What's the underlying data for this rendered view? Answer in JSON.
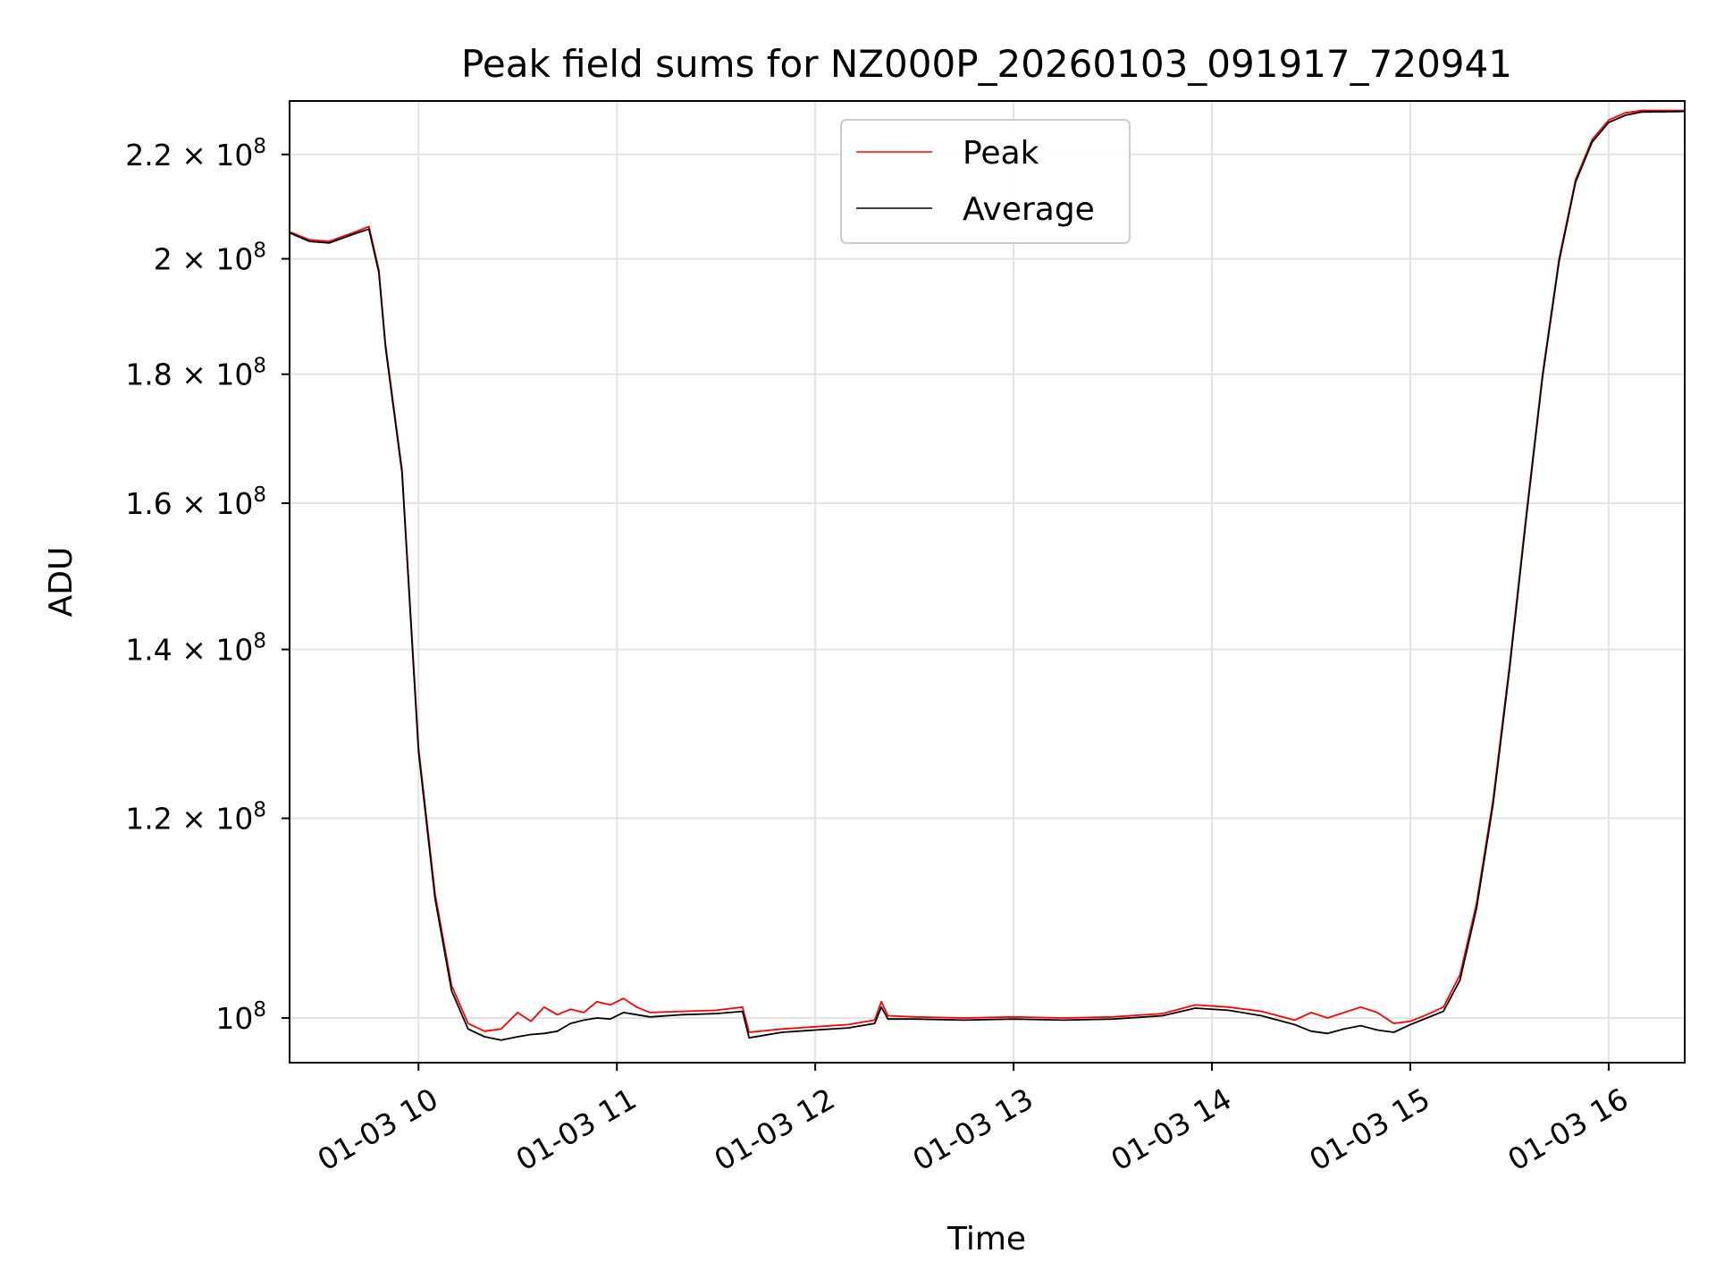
{
  "chart_data": {
    "type": "line",
    "title": "Peak field sums for NZ000P_20260103_091917_720941",
    "xlabel": "Time",
    "ylabel": "ADU",
    "y_scale": "log",
    "xlim": [
      "2026-01-03 09:21",
      "2026-01-03 16:23"
    ],
    "ylim": [
      96000000,
      231000000
    ],
    "grid": true,
    "legend_position": "upper center",
    "x_ticks": [
      {
        "value": "2026-01-03 10:00",
        "label": "01-03 10"
      },
      {
        "value": "2026-01-03 11:00",
        "label": "01-03 11"
      },
      {
        "value": "2026-01-03 12:00",
        "label": "01-03 12"
      },
      {
        "value": "2026-01-03 13:00",
        "label": "01-03 13"
      },
      {
        "value": "2026-01-03 14:00",
        "label": "01-03 14"
      },
      {
        "value": "2026-01-03 15:00",
        "label": "01-03 15"
      },
      {
        "value": "2026-01-03 16:00",
        "label": "01-03 16"
      }
    ],
    "y_ticks": [
      {
        "value": 100000000,
        "base": "10",
        "exp": "8"
      },
      {
        "value": 120000000,
        "base": "1.2 × 10",
        "exp": "8"
      },
      {
        "value": 140000000,
        "base": "1.4 × 10",
        "exp": "8"
      },
      {
        "value": 160000000,
        "base": "1.6 × 10",
        "exp": "8"
      },
      {
        "value": 180000000,
        "base": "1.8 × 10",
        "exp": "8"
      },
      {
        "value": 200000000,
        "base": "2 × 10",
        "exp": "8"
      },
      {
        "value": 220000000,
        "base": "2.2 × 10",
        "exp": "8"
      }
    ],
    "series": [
      {
        "name": "Peak",
        "color": "#ff0000",
        "x": [
          "2026-01-03 09:21",
          "2026-01-03 09:27",
          "2026-01-03 09:33",
          "2026-01-03 09:41",
          "2026-01-03 09:45",
          "2026-01-03 09:48",
          "2026-01-03 09:50",
          "2026-01-03 09:55",
          "2026-01-03 10:00",
          "2026-01-03 10:05",
          "2026-01-03 10:10",
          "2026-01-03 10:15",
          "2026-01-03 10:20",
          "2026-01-03 10:25",
          "2026-01-03 10:30",
          "2026-01-03 10:34",
          "2026-01-03 10:38",
          "2026-01-03 10:42",
          "2026-01-03 10:46",
          "2026-01-03 10:50",
          "2026-01-03 10:54",
          "2026-01-03 10:58",
          "2026-01-03 11:02",
          "2026-01-03 11:06",
          "2026-01-03 11:10",
          "2026-01-03 11:20",
          "2026-01-03 11:30",
          "2026-01-03 11:38",
          "2026-01-03 11:40",
          "2026-01-03 11:50",
          "2026-01-03 12:00",
          "2026-01-03 12:10",
          "2026-01-03 12:18",
          "2026-01-03 12:20",
          "2026-01-03 12:22",
          "2026-01-03 12:30",
          "2026-01-03 12:45",
          "2026-01-03 13:00",
          "2026-01-03 13:15",
          "2026-01-03 13:30",
          "2026-01-03 13:45",
          "2026-01-03 13:55",
          "2026-01-03 14:05",
          "2026-01-03 14:15",
          "2026-01-03 14:25",
          "2026-01-03 14:30",
          "2026-01-03 14:35",
          "2026-01-03 14:40",
          "2026-01-03 14:45",
          "2026-01-03 14:50",
          "2026-01-03 14:55",
          "2026-01-03 15:00",
          "2026-01-03 15:05",
          "2026-01-03 15:10",
          "2026-01-03 15:15",
          "2026-01-03 15:20",
          "2026-01-03 15:25",
          "2026-01-03 15:30",
          "2026-01-03 15:35",
          "2026-01-03 15:40",
          "2026-01-03 15:45",
          "2026-01-03 15:50",
          "2026-01-03 15:55",
          "2026-01-03 16:00",
          "2026-01-03 16:05",
          "2026-01-03 16:10",
          "2026-01-03 16:23"
        ],
        "y": [
          205000000,
          203500000,
          203200000,
          205000000,
          206000000,
          198000000,
          185000000,
          165000000,
          128000000,
          112000000,
          103000000,
          99500000,
          98800000,
          99000000,
          100500000,
          99700000,
          101000000,
          100300000,
          100800000,
          100500000,
          101500000,
          101200000,
          101800000,
          101000000,
          100500000,
          100600000,
          100700000,
          101000000,
          98700000,
          99000000,
          99200000,
          99400000,
          99800000,
          101500000,
          100200000,
          100100000,
          100000000,
          100100000,
          100000000,
          100100000,
          100400000,
          101200000,
          101000000,
          100600000,
          99800000,
          100500000,
          100000000,
          100500000,
          101000000,
          100500000,
          99500000,
          99700000,
          100300000,
          101000000,
          104000000,
          111000000,
          122000000,
          138000000,
          158000000,
          180000000,
          200000000,
          215000000,
          223000000,
          227000000,
          228500000,
          229000000,
          229000000
        ]
      },
      {
        "name": "Average",
        "color": "#000000",
        "x": [
          "2026-01-03 09:21",
          "2026-01-03 09:27",
          "2026-01-03 09:33",
          "2026-01-03 09:41",
          "2026-01-03 09:45",
          "2026-01-03 09:48",
          "2026-01-03 09:50",
          "2026-01-03 09:55",
          "2026-01-03 10:00",
          "2026-01-03 10:05",
          "2026-01-03 10:10",
          "2026-01-03 10:15",
          "2026-01-03 10:20",
          "2026-01-03 10:25",
          "2026-01-03 10:30",
          "2026-01-03 10:34",
          "2026-01-03 10:38",
          "2026-01-03 10:42",
          "2026-01-03 10:46",
          "2026-01-03 10:50",
          "2026-01-03 10:54",
          "2026-01-03 10:58",
          "2026-01-03 11:02",
          "2026-01-03 11:06",
          "2026-01-03 11:10",
          "2026-01-03 11:20",
          "2026-01-03 11:30",
          "2026-01-03 11:38",
          "2026-01-03 11:40",
          "2026-01-03 11:50",
          "2026-01-03 12:00",
          "2026-01-03 12:10",
          "2026-01-03 12:18",
          "2026-01-03 12:20",
          "2026-01-03 12:22",
          "2026-01-03 12:30",
          "2026-01-03 12:45",
          "2026-01-03 13:00",
          "2026-01-03 13:15",
          "2026-01-03 13:30",
          "2026-01-03 13:45",
          "2026-01-03 13:55",
          "2026-01-03 14:05",
          "2026-01-03 14:15",
          "2026-01-03 14:25",
          "2026-01-03 14:30",
          "2026-01-03 14:35",
          "2026-01-03 14:40",
          "2026-01-03 14:45",
          "2026-01-03 14:50",
          "2026-01-03 14:55",
          "2026-01-03 15:00",
          "2026-01-03 15:05",
          "2026-01-03 15:10",
          "2026-01-03 15:15",
          "2026-01-03 15:20",
          "2026-01-03 15:25",
          "2026-01-03 15:30",
          "2026-01-03 15:35",
          "2026-01-03 15:40",
          "2026-01-03 15:45",
          "2026-01-03 15:50",
          "2026-01-03 15:55",
          "2026-01-03 16:00",
          "2026-01-03 16:05",
          "2026-01-03 16:10",
          "2026-01-03 16:23"
        ],
        "y": [
          204800000,
          203200000,
          202900000,
          204700000,
          205500000,
          197500000,
          184500000,
          164500000,
          127500000,
          111500000,
          102500000,
          99000000,
          98300000,
          98000000,
          98300000,
          98500000,
          98600000,
          98800000,
          99500000,
          99800000,
          100000000,
          99900000,
          100500000,
          100300000,
          100100000,
          100300000,
          100400000,
          100600000,
          98200000,
          98700000,
          98900000,
          99100000,
          99500000,
          101000000,
          99900000,
          99900000,
          99800000,
          99900000,
          99800000,
          99900000,
          100200000,
          100900000,
          100700000,
          100200000,
          99400000,
          98800000,
          98600000,
          99000000,
          99300000,
          98900000,
          98700000,
          99400000,
          100000000,
          100600000,
          103500000,
          110500000,
          121500000,
          137500000,
          157500000,
          179500000,
          199500000,
          214500000,
          222500000,
          226500000,
          228000000,
          228700000,
          228800000
        ]
      }
    ]
  }
}
